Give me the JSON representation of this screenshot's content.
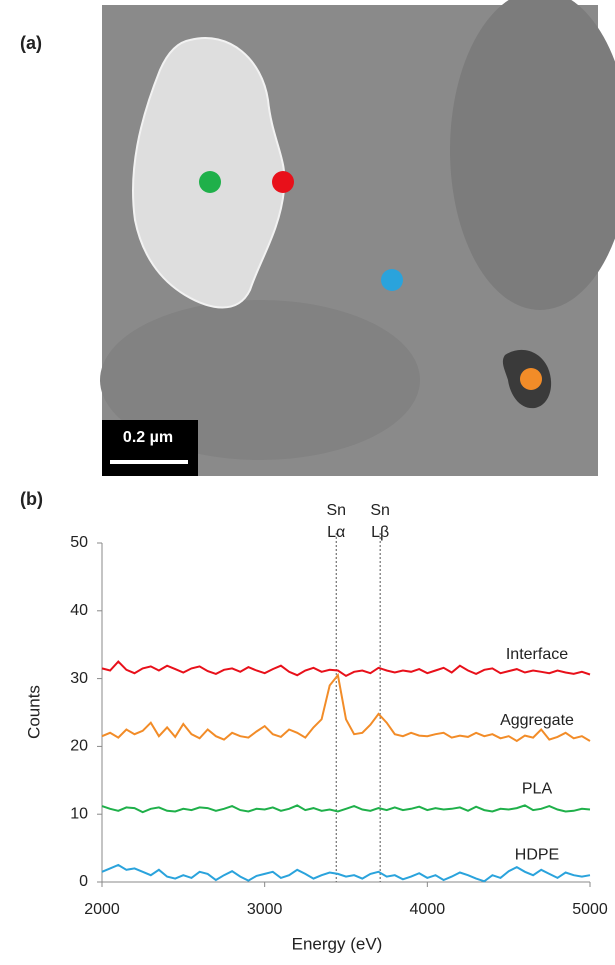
{
  "panel_a": {
    "label": "(a)",
    "scale_bar": "0.2 µm"
  },
  "chart_data": {
    "type": "line",
    "panel_label": "(b)",
    "x_label": "Energy (eV)",
    "y_label": "Counts",
    "xlim": [
      2000,
      5000
    ],
    "xticks": [
      2000,
      3000,
      4000,
      5000
    ],
    "ylim": [
      0,
      50
    ],
    "yticks": [
      0,
      10,
      20,
      30,
      40,
      50
    ],
    "grid": false,
    "x": [
      2000,
      2050,
      2100,
      2150,
      2200,
      2250,
      2300,
      2350,
      2400,
      2450,
      2500,
      2550,
      2600,
      2650,
      2700,
      2750,
      2800,
      2850,
      2900,
      2950,
      3000,
      3050,
      3100,
      3150,
      3200,
      3250,
      3300,
      3350,
      3400,
      3450,
      3500,
      3550,
      3600,
      3650,
      3700,
      3750,
      3800,
      3850,
      3900,
      3950,
      4000,
      4050,
      4100,
      4150,
      4200,
      4250,
      4300,
      4350,
      4400,
      4450,
      4500,
      4550,
      4600,
      4650,
      4700,
      4750,
      4800,
      4850,
      4900,
      4950,
      5000
    ],
    "annotations": [
      {
        "x": 3440,
        "lines": [
          "Sn",
          "Lα"
        ]
      },
      {
        "x": 3710,
        "lines": [
          "Sn",
          "Lβ"
        ]
      }
    ],
    "series": [
      {
        "name": "Interface",
        "color": "#e8101a",
        "values": [
          31.5,
          31.2,
          32.5,
          31.3,
          30.8,
          31.5,
          31.8,
          31.2,
          31.9,
          31.4,
          30.9,
          31.5,
          31.8,
          31.1,
          30.7,
          31.3,
          31.5,
          31.0,
          31.7,
          31.2,
          30.8,
          31.4,
          31.9,
          31.0,
          30.5,
          31.2,
          31.6,
          31.0,
          31.3,
          31.2,
          30.4,
          31.0,
          31.2,
          30.8,
          31.6,
          31.2,
          30.9,
          31.2,
          31.0,
          31.4,
          30.8,
          31.2,
          31.6,
          30.9,
          31.9,
          31.2,
          30.7,
          31.3,
          31.5,
          30.8,
          31.1,
          31.4,
          30.9,
          31.2,
          31.0,
          30.8,
          31.2,
          30.9,
          30.7,
          31.0,
          30.6
        ]
      },
      {
        "name": "Aggregate",
        "color": "#f28c28",
        "values": [
          21.5,
          22.0,
          21.3,
          22.5,
          21.8,
          22.3,
          23.5,
          21.5,
          22.8,
          21.4,
          23.3,
          21.8,
          21.2,
          22.5,
          21.5,
          21.0,
          22.0,
          21.5,
          21.3,
          22.2,
          23.0,
          21.8,
          21.4,
          22.5,
          22.0,
          21.3,
          22.8,
          24.0,
          29.0,
          30.5,
          24.0,
          21.8,
          22.0,
          23.2,
          24.8,
          23.5,
          21.8,
          21.5,
          22.0,
          21.6,
          21.5,
          21.8,
          22.0,
          21.3,
          21.6,
          21.4,
          22.0,
          21.5,
          21.8,
          21.2,
          21.5,
          20.8,
          21.6,
          21.3,
          22.5,
          21.0,
          21.4,
          22.0,
          21.2,
          21.5,
          20.8
        ]
      },
      {
        "name": "PLA",
        "color": "#1fb04a",
        "values": [
          11.2,
          10.8,
          10.5,
          11.0,
          10.9,
          10.3,
          10.8,
          11.0,
          10.5,
          10.4,
          10.8,
          10.6,
          11.0,
          10.9,
          10.5,
          10.8,
          11.2,
          10.6,
          10.4,
          10.8,
          10.7,
          11.0,
          10.5,
          10.8,
          11.3,
          10.6,
          10.9,
          10.5,
          10.7,
          10.4,
          10.8,
          11.2,
          10.7,
          10.5,
          10.9,
          10.6,
          11.0,
          10.6,
          10.8,
          11.1,
          10.6,
          10.9,
          10.7,
          10.8,
          11.0,
          10.5,
          11.1,
          10.6,
          10.4,
          10.8,
          10.7,
          10.9,
          11.3,
          10.6,
          10.8,
          11.2,
          10.7,
          10.4,
          10.5,
          10.8,
          10.7
        ]
      },
      {
        "name": "HDPE",
        "color": "#2aa3dc",
        "values": [
          1.5,
          2.0,
          2.5,
          1.8,
          2.0,
          1.5,
          1.0,
          1.8,
          0.8,
          0.5,
          1.0,
          0.6,
          1.5,
          1.2,
          0.3,
          1.0,
          1.6,
          0.8,
          0.2,
          0.9,
          1.2,
          1.5,
          0.6,
          1.0,
          1.8,
          1.2,
          0.5,
          1.0,
          1.4,
          1.2,
          0.8,
          1.0,
          0.5,
          1.2,
          1.5,
          0.8,
          1.0,
          0.4,
          0.8,
          1.3,
          0.6,
          1.0,
          0.3,
          0.8,
          1.4,
          1.0,
          0.5,
          0.1,
          1.0,
          0.6,
          1.6,
          2.2,
          1.5,
          1.0,
          1.8,
          1.2,
          0.6,
          1.4,
          1.0,
          0.8,
          1.0
        ]
      }
    ]
  }
}
